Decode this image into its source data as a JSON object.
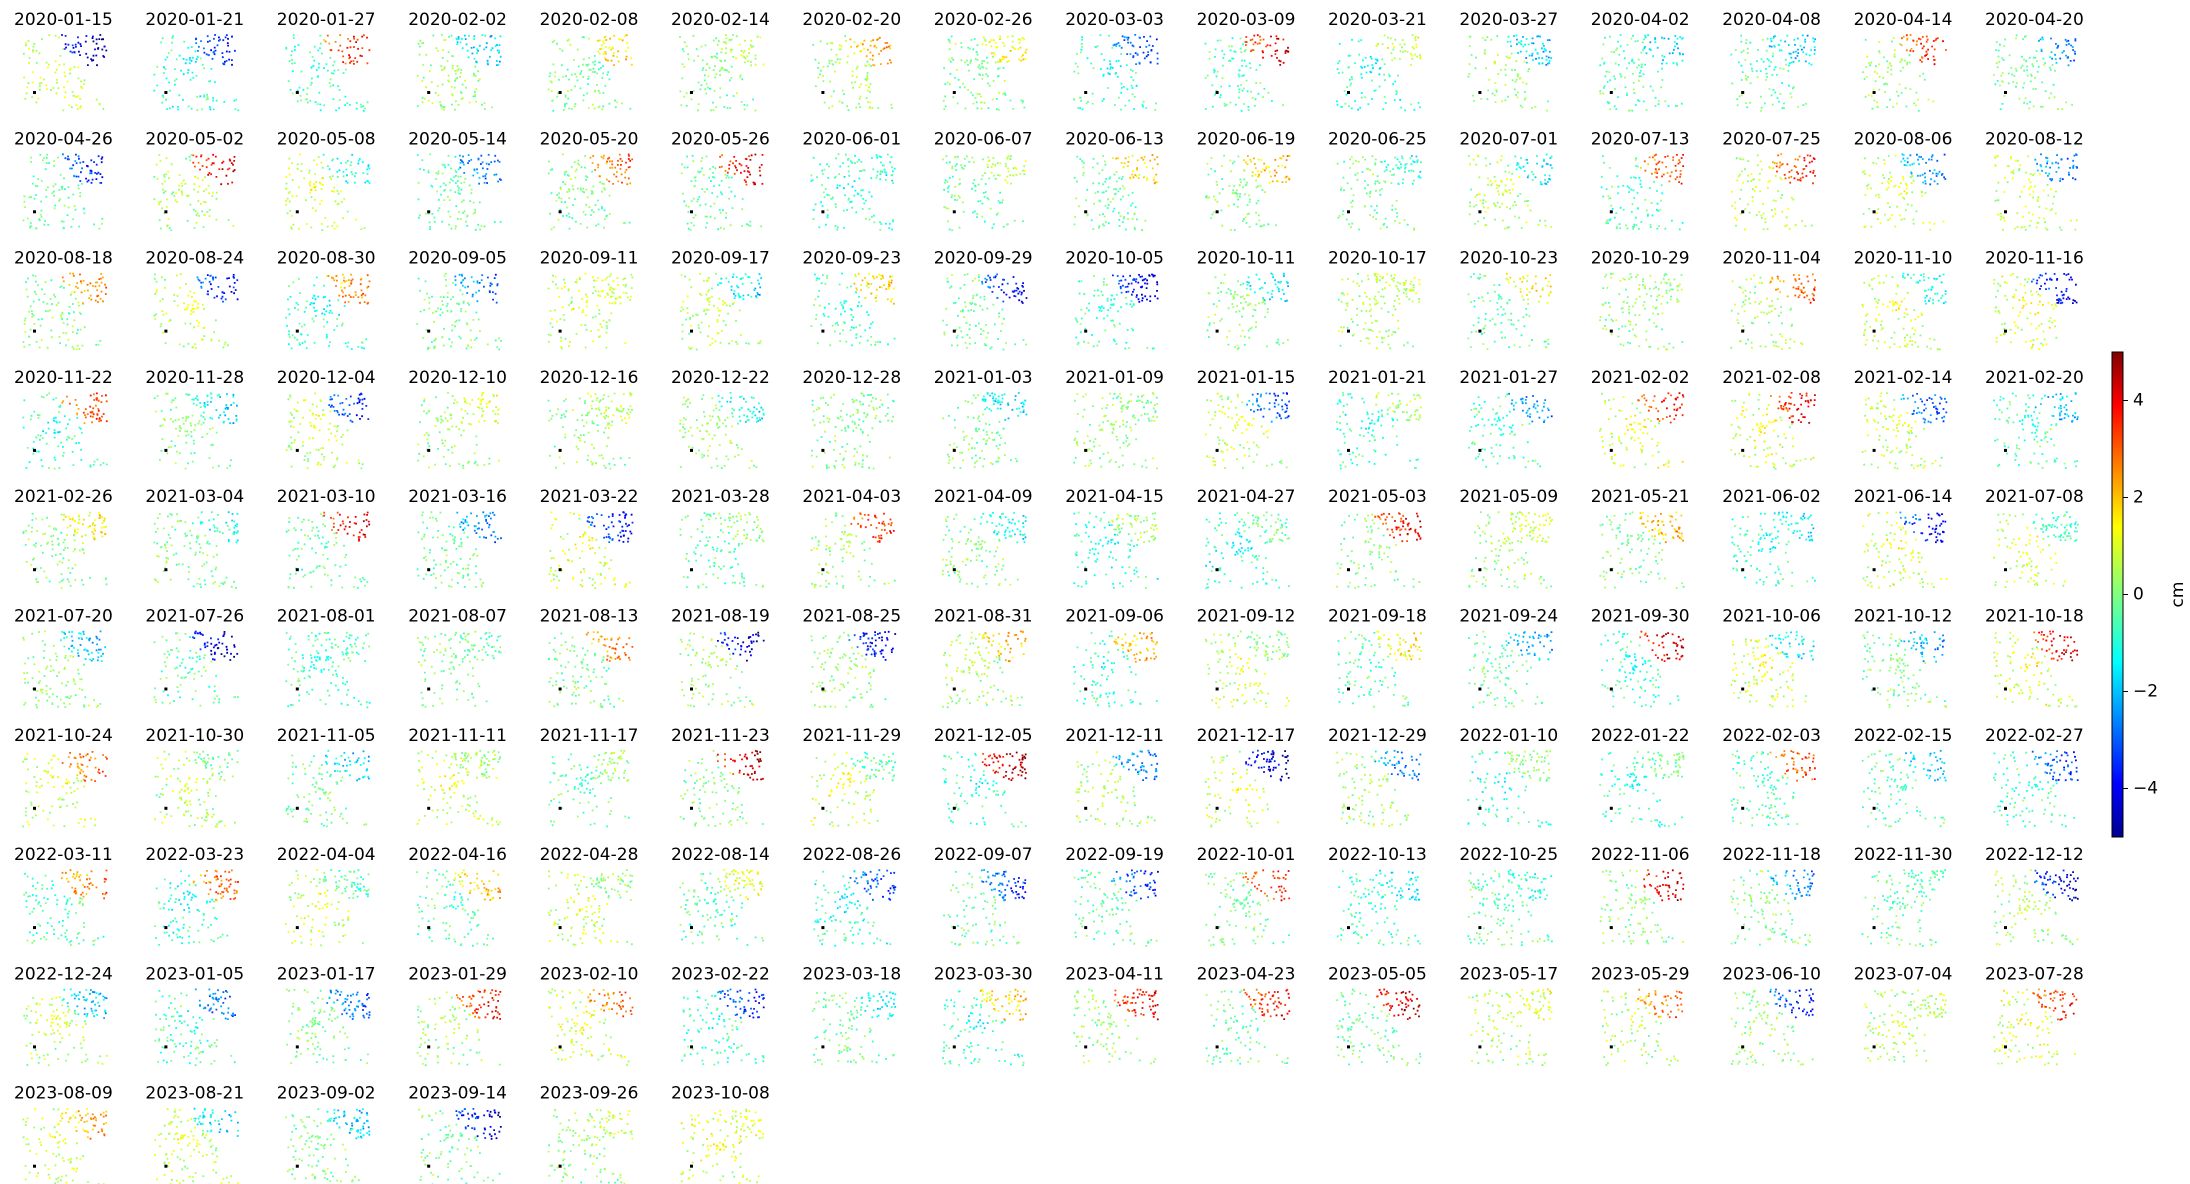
{
  "chart_data": {
    "type": "image_grid",
    "panels": [
      "2020-01-15",
      "2020-01-21",
      "2020-01-27",
      "2020-02-02",
      "2020-02-08",
      "2020-02-14",
      "2020-02-20",
      "2020-02-26",
      "2020-03-03",
      "2020-03-09",
      "2020-03-21",
      "2020-03-27",
      "2020-04-02",
      "2020-04-08",
      "2020-04-14",
      "2020-04-20",
      "2020-04-26",
      "2020-05-02",
      "2020-05-08",
      "2020-05-14",
      "2020-05-20",
      "2020-05-26",
      "2020-06-01",
      "2020-06-07",
      "2020-06-13",
      "2020-06-19",
      "2020-06-25",
      "2020-07-01",
      "2020-07-13",
      "2020-07-25",
      "2020-08-06",
      "2020-08-12",
      "2020-08-18",
      "2020-08-24",
      "2020-08-30",
      "2020-09-05",
      "2020-09-11",
      "2020-09-17",
      "2020-09-23",
      "2020-09-29",
      "2020-10-05",
      "2020-10-11",
      "2020-10-17",
      "2020-10-23",
      "2020-10-29",
      "2020-11-04",
      "2020-11-10",
      "2020-11-16",
      "2020-11-22",
      "2020-11-28",
      "2020-12-04",
      "2020-12-10",
      "2020-12-16",
      "2020-12-22",
      "2020-12-28",
      "2021-01-03",
      "2021-01-09",
      "2021-01-15",
      "2021-01-21",
      "2021-01-27",
      "2021-02-02",
      "2021-02-08",
      "2021-02-14",
      "2021-02-20",
      "2021-02-26",
      "2021-03-04",
      "2021-03-10",
      "2021-03-16",
      "2021-03-22",
      "2021-03-28",
      "2021-04-03",
      "2021-04-09",
      "2021-04-15",
      "2021-04-27",
      "2021-05-03",
      "2021-05-09",
      "2021-05-21",
      "2021-06-02",
      "2021-06-14",
      "2021-07-08",
      "2021-07-20",
      "2021-07-26",
      "2021-08-01",
      "2021-08-07",
      "2021-08-13",
      "2021-08-19",
      "2021-08-25",
      "2021-08-31",
      "2021-09-06",
      "2021-09-12",
      "2021-09-18",
      "2021-09-24",
      "2021-09-30",
      "2021-10-06",
      "2021-10-12",
      "2021-10-18",
      "2021-10-24",
      "2021-10-30",
      "2021-11-05",
      "2021-11-11",
      "2021-11-17",
      "2021-11-23",
      "2021-11-29",
      "2021-12-05",
      "2021-12-11",
      "2021-12-17",
      "2021-12-29",
      "2022-01-10",
      "2022-01-22",
      "2022-02-03",
      "2022-02-15",
      "2022-02-27",
      "2022-03-11",
      "2022-03-23",
      "2022-04-04",
      "2022-04-16",
      "2022-04-28",
      "2022-08-14",
      "2022-08-26",
      "2022-09-07",
      "2022-09-19",
      "2022-10-01",
      "2022-10-13",
      "2022-10-25",
      "2022-11-06",
      "2022-11-18",
      "2022-11-30",
      "2022-12-12",
      "2022-12-24",
      "2023-01-05",
      "2023-01-17",
      "2023-01-29",
      "2023-02-10",
      "2023-02-22",
      "2023-03-18",
      "2023-03-30",
      "2023-04-11",
      "2023-04-23",
      "2023-05-05",
      "2023-05-17",
      "2023-05-29",
      "2023-06-10",
      "2023-07-04",
      "2023-07-28",
      "2023-08-09",
      "2023-08-21",
      "2023-09-02",
      "2023-09-14",
      "2023-09-26",
      "2023-10-08"
    ],
    "colorbar": {
      "label": "cm",
      "colormap": "jet",
      "ylim": [
        -5,
        5
      ],
      "yticks": [
        {
          "value": -4,
          "label": "−4"
        },
        {
          "value": -2,
          "label": "−2"
        },
        0,
        2,
        4
      ]
    }
  }
}
